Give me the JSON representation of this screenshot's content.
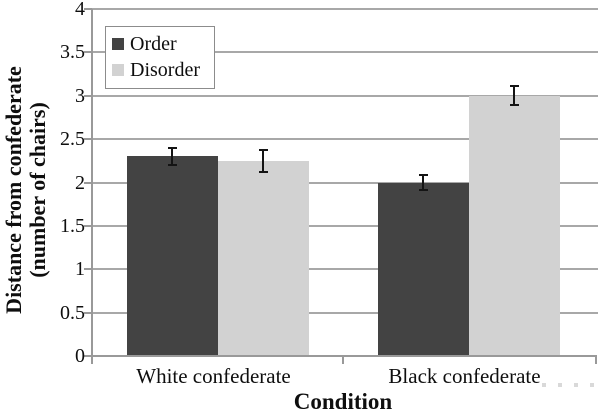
{
  "chart_data": {
    "type": "bar",
    "title": "",
    "xlabel": "Condition",
    "ylabel": "Distance from confederate (number of chairs)",
    "ylabel_lines": [
      "Distance from confederate",
      "(number of chairs)"
    ],
    "categories": [
      "White confederate",
      "Black confederate"
    ],
    "series": [
      {
        "name": "Order",
        "color": "#434343",
        "values": [
          2.3,
          2.0
        ],
        "errors": [
          0.1,
          0.09
        ]
      },
      {
        "name": "Disorder",
        "color": "#d2d2d2",
        "values": [
          2.25,
          3.0
        ],
        "errors": [
          0.13,
          0.11
        ]
      }
    ],
    "ylim": [
      0,
      4
    ],
    "yticks": [
      0,
      0.5,
      1,
      1.5,
      2,
      2.5,
      3,
      3.5,
      4
    ],
    "ytick_labels": [
      "0",
      "0.5",
      "1",
      "1.5",
      "2",
      "2.5",
      "3",
      "3.5",
      "4"
    ],
    "grid": true,
    "legend_position": "top-left",
    "error_bars": true,
    "colors": {
      "grid": "#a8a8a8",
      "axis": "#999999",
      "text": "#0e0e0e",
      "error_bar": "#141414",
      "legend_border": "#8c8c8c",
      "background": "#ffffff",
      "faint_dots": "#d9d9d9"
    }
  }
}
